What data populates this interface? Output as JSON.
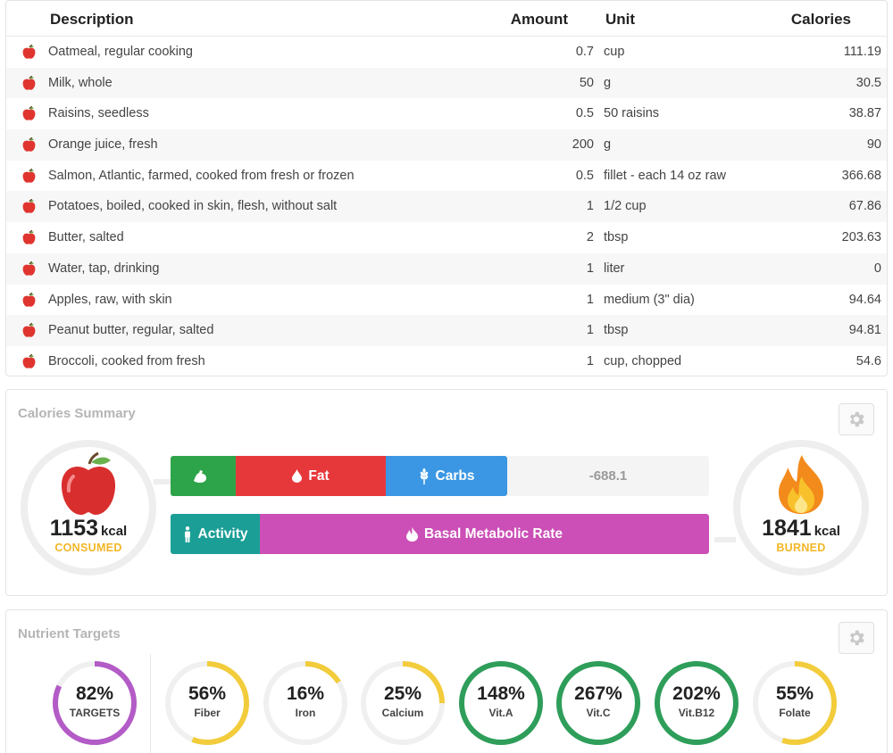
{
  "table": {
    "headers": {
      "description": "Description",
      "amount": "Amount",
      "unit": "Unit",
      "calories": "Calories"
    },
    "rows": [
      {
        "description": "Oatmeal, regular cooking",
        "amount": "0.7",
        "unit": "cup",
        "calories": "111.19"
      },
      {
        "description": "Milk, whole",
        "amount": "50",
        "unit": "g",
        "calories": "30.5"
      },
      {
        "description": "Raisins, seedless",
        "amount": "0.5",
        "unit": "50 raisins",
        "calories": "38.87"
      },
      {
        "description": "Orange juice, fresh",
        "amount": "200",
        "unit": "g",
        "calories": "90"
      },
      {
        "description": "Salmon, Atlantic, farmed, cooked from fresh or frozen",
        "amount": "0.5",
        "unit": "fillet - each 14 oz raw",
        "calories": "366.68"
      },
      {
        "description": "Potatoes, boiled, cooked in skin, flesh, without salt",
        "amount": "1",
        "unit": "1/2 cup",
        "calories": "67.86"
      },
      {
        "description": "Butter, salted",
        "amount": "2",
        "unit": "tbsp",
        "calories": "203.63"
      },
      {
        "description": "Water, tap, drinking",
        "amount": "1",
        "unit": "liter",
        "calories": "0"
      },
      {
        "description": "Apples, raw, with skin",
        "amount": "1",
        "unit": "medium (3\" dia)",
        "calories": "94.64"
      },
      {
        "description": "Peanut butter, regular, salted",
        "amount": "1",
        "unit": "tbsp",
        "calories": "94.81"
      },
      {
        "description": "Broccoli, cooked from fresh",
        "amount": "1",
        "unit": "cup, chopped",
        "calories": "54.6"
      }
    ]
  },
  "calories_summary": {
    "title": "Calories Summary",
    "consumed": {
      "value": "1153",
      "unit": "kcal",
      "label": "CONSUMED",
      "icon": "apple-icon"
    },
    "burned": {
      "value": "1841",
      "unit": "kcal",
      "label": "BURNED",
      "icon": "flame-icon"
    },
    "intake_bar": {
      "protein_icon": "arm-icon",
      "fat_label": "Fat",
      "carbs_label": "Carbs",
      "balance": "-688.1"
    },
    "burn_bar": {
      "activity_label": "Activity",
      "bmr_label": "Basal Metabolic Rate"
    }
  },
  "nutrient_targets": {
    "title": "Nutrient Targets",
    "items": [
      {
        "value": "82%",
        "label": "TARGETS",
        "fraction": 0.82,
        "color": "#b35bc6"
      },
      {
        "value": "56%",
        "label": "Fiber",
        "fraction": 0.56,
        "color": "#f2cc3b"
      },
      {
        "value": "16%",
        "label": "Iron",
        "fraction": 0.16,
        "color": "#f2cc3b"
      },
      {
        "value": "25%",
        "label": "Calcium",
        "fraction": 0.25,
        "color": "#f2cc3b"
      },
      {
        "value": "148%",
        "label": "Vit.A",
        "fraction": 1,
        "color": "#2e9e5a"
      },
      {
        "value": "267%",
        "label": "Vit.C",
        "fraction": 1,
        "color": "#2e9e5a"
      },
      {
        "value": "202%",
        "label": "Vit.B12",
        "fraction": 1,
        "color": "#2e9e5a"
      },
      {
        "value": "55%",
        "label": "Folate",
        "fraction": 0.55,
        "color": "#f2cc3b"
      }
    ]
  },
  "colors": {
    "protein": "#2ea44a",
    "fat": "#e6383b",
    "carbs": "#3b97e3",
    "activity": "#1a9e96",
    "bmr": "#cb4fb6",
    "consumed_label": "#f3b626"
  }
}
